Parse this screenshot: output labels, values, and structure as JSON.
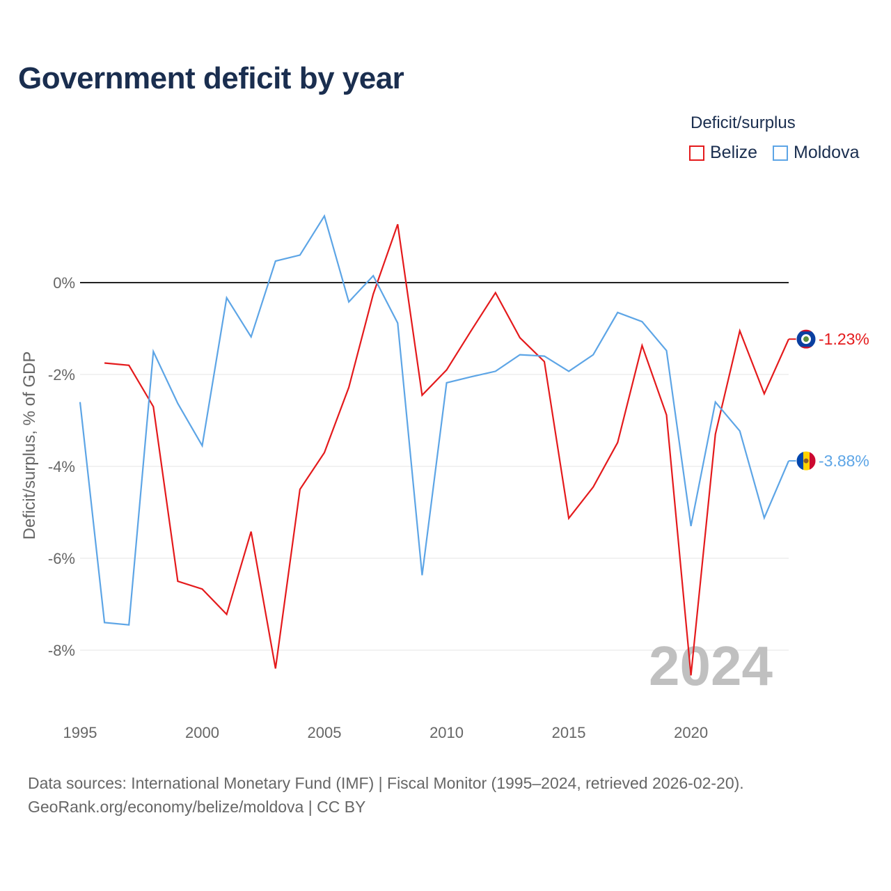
{
  "title": "Government deficit by year",
  "legend": {
    "title": "Deficit/surplus",
    "items": [
      {
        "label": "Belize",
        "color": "#e41a1c"
      },
      {
        "label": "Moldova",
        "color": "#5da5e6"
      }
    ]
  },
  "year_watermark": "2024",
  "footer": {
    "line1": "Data sources: International Monetary Fund (IMF) | Fiscal Monitor (1995–2024, retrieved 2026-02-20).",
    "line2": "GeoRank.org/economy/belize/moldova | CC BY"
  },
  "chart_data": {
    "type": "line",
    "title": "Government deficit by year",
    "xlabel": "",
    "ylabel": "Deficit/surplus, % of GDP",
    "xlim": [
      1995,
      2024
    ],
    "ylim": [
      -9.5,
      2
    ],
    "x_ticks": [
      1995,
      2000,
      2005,
      2010,
      2015,
      2020
    ],
    "y_ticks": [
      0,
      -2,
      -4,
      -6,
      -8
    ],
    "y_tick_labels": [
      "0%",
      "-2%",
      "-4%",
      "-6%",
      "-8%"
    ],
    "series": [
      {
        "name": "Belize",
        "color": "#e41a1c",
        "end_label": "-1.23%",
        "flag": "flag-belize-icon",
        "x": [
          1996,
          1997,
          1998,
          1999,
          2000,
          2001,
          2002,
          2003,
          2004,
          2005,
          2006,
          2007,
          2008,
          2009,
          2010,
          2011,
          2012,
          2013,
          2014,
          2015,
          2016,
          2017,
          2018,
          2019,
          2020,
          2021,
          2022,
          2023,
          2024
        ],
        "values": [
          -1.75,
          -1.8,
          -2.7,
          -6.5,
          -6.67,
          -7.22,
          -5.42,
          -8.4,
          -4.5,
          -3.7,
          -2.28,
          -0.25,
          1.27,
          -2.45,
          -1.9,
          -1.05,
          -0.22,
          -1.2,
          -1.72,
          -5.13,
          -4.45,
          -3.48,
          -1.37,
          -2.88,
          -8.55,
          -3.3,
          -1.05,
          -2.42,
          -1.23
        ]
      },
      {
        "name": "Moldova",
        "color": "#5da5e6",
        "end_label": "-3.88%",
        "flag": "flag-moldova-icon",
        "x": [
          1995,
          1996,
          1997,
          1998,
          1999,
          2000,
          2001,
          2002,
          2003,
          2004,
          2005,
          2006,
          2007,
          2008,
          2009,
          2010,
          2011,
          2012,
          2013,
          2014,
          2015,
          2016,
          2017,
          2018,
          2019,
          2020,
          2021,
          2022,
          2023,
          2024
        ],
        "values": [
          -2.6,
          -7.4,
          -7.45,
          -1.5,
          -2.63,
          -3.55,
          -0.33,
          -1.18,
          0.47,
          0.6,
          1.45,
          -0.42,
          0.15,
          -0.88,
          -6.37,
          -2.18,
          -2.05,
          -1.93,
          -1.57,
          -1.6,
          -1.93,
          -1.57,
          -0.65,
          -0.85,
          -1.48,
          -5.3,
          -2.6,
          -3.23,
          -5.12,
          -3.88
        ]
      }
    ]
  }
}
